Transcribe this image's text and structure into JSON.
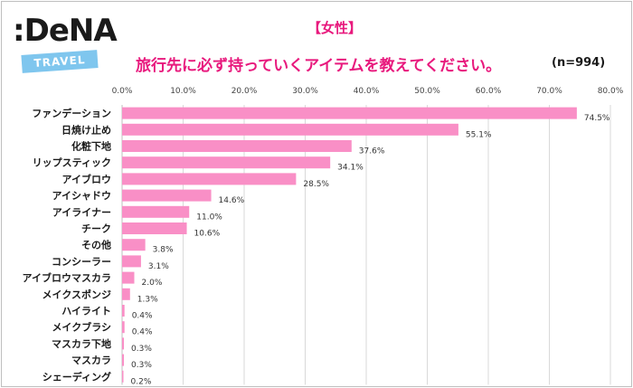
{
  "logo": {
    "main": ":DeNA",
    "tag": "TRAVEL"
  },
  "subtitle": "【女性】",
  "title": "旅行先に必ず持っていくアイテムを教えてください。",
  "sample_size": "(n=994)",
  "colors": {
    "bar": "#f98fc6",
    "title": "#e8197d",
    "grid": "#d9d9d9",
    "logo_tag": "#7fc6ee"
  },
  "chart_data": {
    "type": "bar",
    "orientation": "horizontal",
    "title": "旅行先に必ず持っていくアイテムを教えてください。",
    "categories": [
      "ファンデーション",
      "日焼け止め",
      "化粧下地",
      "リップスティック",
      "アイブロウ",
      "アイシャドウ",
      "アイライナー",
      "チーク",
      "その他",
      "コンシーラー",
      "アイブロウマスカラ",
      "メイクスポンジ",
      "ハイライト",
      "メイクブラシ",
      "マスカラ下地",
      "マスカラ",
      "シェーディング"
    ],
    "values": [
      74.5,
      55.1,
      37.6,
      34.1,
      28.5,
      14.6,
      11.0,
      10.6,
      3.8,
      3.1,
      2.0,
      1.3,
      0.4,
      0.4,
      0.3,
      0.3,
      0.2
    ],
    "value_labels": [
      "74.5%",
      "55.1%",
      "37.6%",
      "34.1%",
      "28.5%",
      "14.6%",
      "11.0%",
      "10.6%",
      "3.8%",
      "3.1%",
      "2.0%",
      "1.3%",
      "0.4%",
      "0.4%",
      "0.3%",
      "0.3%",
      "0.2%"
    ],
    "xticks": [
      "0.0%",
      "10.0%",
      "20.0%",
      "30.0%",
      "40.0%",
      "50.0%",
      "60.0%",
      "70.0%",
      "80.0%"
    ],
    "xlim": [
      0,
      80
    ],
    "grid": true,
    "legend": "none"
  }
}
